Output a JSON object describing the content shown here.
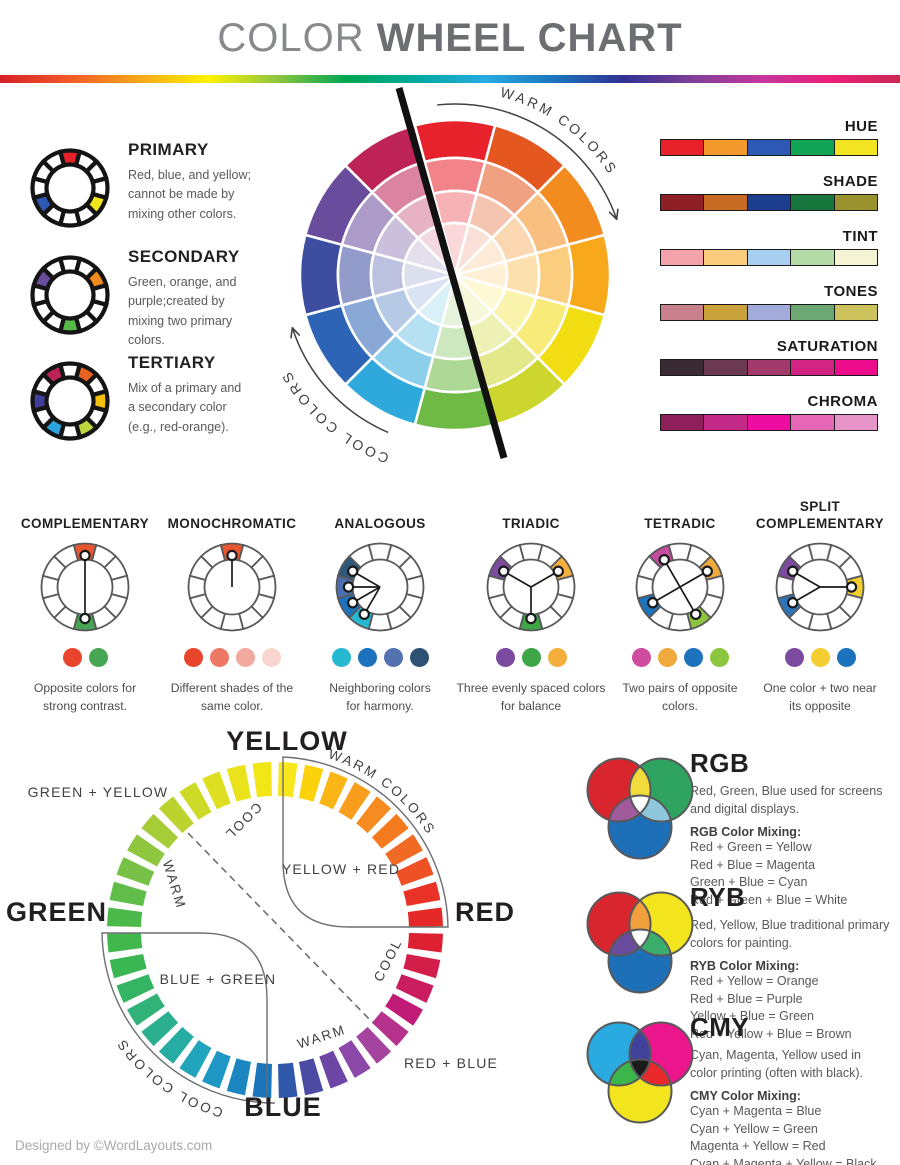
{
  "header": {
    "title_light": "COLOR",
    "title_bold": "WHEEL CHART",
    "rainbow_stops": [
      "#D62027",
      "#F05A28",
      "#F9A61A",
      "#FFF200",
      "#8DC63F",
      "#00A651",
      "#00A99D",
      "#29ABE2",
      "#1C75BC",
      "#2E3192",
      "#7F3F98",
      "#C4379E",
      "#EC1E79",
      "#C92A53"
    ]
  },
  "left_panel": {
    "items": [
      {
        "title": "PRIMARY",
        "description": "Red, blue, and yellow;\ncannot be made by\nmixing other colors.",
        "wheel_filled": {
          "0": "#E8212B",
          "4": "#F2E41D",
          "8": "#2D59B5"
        }
      },
      {
        "title": "SECONDARY",
        "description": "Green, orange, and\npurple;created by\nmixing two primary\ncolors.",
        "wheel_filled": {
          "2": "#F28A1F",
          "6": "#56B947",
          "10": "#6A4C9C"
        }
      },
      {
        "title": "TERTIARY",
        "description": "Mix of a primary and\na secondary color\n(e.g., red-orange).",
        "wheel_filled": {
          "1": "#E86322",
          "3": "#F2C20D",
          "5": "#BCD63B",
          "7": "#2BA4DD",
          "9": "#413E99",
          "11": "#BE2358"
        }
      }
    ]
  },
  "center_wheel": {
    "warm_label": "WARM COLORS",
    "cool_label": "COOL COLORS",
    "colors": [
      "#E8222B",
      "#E4581F",
      "#F28C1E",
      "#F7A81B",
      "#F2DC12",
      "#CDD62E",
      "#6FBA44",
      "#2FA9DC",
      "#2D64B5",
      "#3D4EA0",
      "#6A4C9C",
      "#BE2358"
    ],
    "tint_levels": [
      0,
      0.44,
      0.65,
      0.82
    ]
  },
  "strips": [
    {
      "label": "HUE",
      "colors": [
        "#E8212B",
        "#F49A2C",
        "#2D59B5",
        "#0FA456",
        "#F2E421"
      ]
    },
    {
      "label": "SHADE",
      "colors": [
        "#8E2025",
        "#C76A24",
        "#1D3D8F",
        "#17763B",
        "#99922F"
      ]
    },
    {
      "label": "TINT",
      "colors": [
        "#F4A2AC",
        "#FBCC7E",
        "#A9CFF0",
        "#B5DCA6",
        "#F4F3D3"
      ]
    },
    {
      "label": "TONES",
      "colors": [
        "#C9828D",
        "#C9A23B",
        "#A3ABDB",
        "#6CA873",
        "#CCC35C"
      ]
    },
    {
      "label": "SATURATION",
      "colors": [
        "#3A2B33",
        "#6B3A52",
        "#A23A6C",
        "#D32383",
        "#EC0C8C"
      ]
    },
    {
      "label": "CHROMA",
      "colors": [
        "#8E1F5B",
        "#C32A87",
        "#EE0DA1",
        "#E667B6",
        "#E795C9"
      ]
    }
  ],
  "harmonies": [
    {
      "title": "COMPLEMENTARY",
      "caption": "Opposite colors for\nstrong contrast.",
      "filled": {
        "0": "#E8552F",
        "6": "#46A653"
      },
      "markers": [
        0,
        6
      ],
      "pairs": [
        [
          0,
          6
        ]
      ],
      "dots": [
        "#E8452C",
        "#46A653"
      ]
    },
    {
      "title": "MONOCHROMATIC",
      "caption": "Different shades of the\nsame color.",
      "filled": {
        "0": "#E8552F"
      },
      "markers": [
        0
      ],
      "dots": [
        "#E8452C",
        "#ED7863",
        "#F2A99E",
        "#F8D5CF"
      ]
    },
    {
      "title": "ANALOGOUS",
      "caption": "Neighboring colors\nfor harmony.",
      "filled": {
        "7": "#26B8D1",
        "8": "#1D72BE",
        "9": "#4B6FAE",
        "10": "#2E5878"
      },
      "markers": [
        7,
        8,
        9,
        10
      ],
      "dots": [
        "#26B8D1",
        "#1D72BE",
        "#5472B0",
        "#2E5274"
      ]
    },
    {
      "title": "TRIADIC",
      "caption": "Three evenly spaced colors\nfor balance",
      "filled": {
        "2": "#F4AF3D",
        "6": "#3FA647",
        "10": "#7C4A9E"
      },
      "markers": [
        2,
        6,
        10
      ],
      "dots": [
        "#7C4A9E",
        "#3FA647",
        "#F4AF3D"
      ]
    },
    {
      "title": "TETRADIC",
      "caption": "Two pairs of opposite\ncolors.",
      "filled": {
        "11": "#C34C9E",
        "2": "#F0A93C",
        "5": "#8CC63E",
        "8": "#1D72BE"
      },
      "markers": [
        11,
        2,
        5,
        8
      ],
      "pairs": [
        [
          11,
          5
        ],
        [
          2,
          8
        ]
      ],
      "dots": [
        "#CE4D9F",
        "#F0A93C",
        "#1D72BE",
        "#8CC63E"
      ]
    },
    {
      "title": "SPLIT\nCOMPLEMENTARY",
      "caption": "One color + two near\nits opposite",
      "filled": {
        "3": "#F2CE2E",
        "8": "#2F74B9",
        "10": "#7C4A9E"
      },
      "markers": [
        3,
        8,
        10
      ],
      "dots": [
        "#7C4A9E",
        "#F4CD31",
        "#1D72BE"
      ]
    }
  ],
  "bottom_ring": {
    "labels": {
      "top": "YELLOW",
      "right": "RED",
      "bottom": "BLUE",
      "left": "GREEN"
    },
    "quadrant_labels": {
      "top_left": "GREEN + YELLOW",
      "top_right": "YELLOW + RED",
      "bottom_left": "BLUE + GREEN",
      "bottom_right": "RED + BLUE"
    },
    "arc_warm": "WARM COLORS",
    "arc_cool": "COOL COLORS",
    "temp_labels": [
      "COOL",
      "WARM",
      "COOL",
      "WARM"
    ],
    "colors": [
      "#F8E71C",
      "#FBD20B",
      "#FAB616",
      "#F99D1D",
      "#F68B21",
      "#F47A20",
      "#F16A24",
      "#EE5123",
      "#E93125",
      "#E52828",
      "#DE2033",
      "#D41E4A",
      "#C91D60",
      "#C01B76",
      "#B5338C",
      "#A4449F",
      "#8C48A9",
      "#6E46A6",
      "#4C4BA4",
      "#2F58AB",
      "#1B75BB",
      "#1B86C0",
      "#1E97C5",
      "#22A5BC",
      "#27ACA4",
      "#2BAF8E",
      "#30B279",
      "#35B464",
      "#3AB652",
      "#42B84C",
      "#4CBA4A",
      "#5FBD48",
      "#77C146",
      "#8FC640",
      "#A6CD38",
      "#BCD32F",
      "#CEDA28",
      "#DEDF20",
      "#EAE31B",
      "#F2E617"
    ]
  },
  "mixing": [
    {
      "title": "RGB",
      "description": "Red, Green, Blue used for screens\nand digital displays.",
      "mixing_title": "RGB Color Mixing:",
      "rules": "Red + Green = Yellow\nRed + Blue = Magenta\nGreen + Blue = Cyan\nRed + Green + Blue = White",
      "venn": {
        "a": "#D9252E",
        "b": "#2FA360",
        "c": "#1D6FB8",
        "ab": "#F2DC3B",
        "ac": "#A15A9B",
        "bc": "#8FC8DD",
        "abc": "#FFFFFF"
      }
    },
    {
      "title": "RYB",
      "description": "Red, Yellow, Blue traditional primary\ncolors for painting.",
      "mixing_title": "RYB Color Mixing:",
      "rules": "Red + Yellow = Orange\nRed + Blue = Purple\nYellow + Blue = Green\nRed + Yellow + Blue = Brown",
      "venn": {
        "a": "#D9252E",
        "b": "#F2E41D",
        "c": "#1D6FB8",
        "ab": "#F2A03D",
        "ac": "#6A4C9C",
        "bc": "#3BAE6E",
        "abc": "#FFFFFF"
      }
    },
    {
      "title": "CMY",
      "description": "Cyan, Magenta, Yellow used in\ncolor printing (often with black).",
      "mixing_title": "CMY Color Mixing:",
      "rules": "Cyan + Magenta = Blue\nCyan + Yellow = Green\nMagenta + Yellow = Red\nCyan + Magenta + Yellow = Black",
      "venn": {
        "a": "#29ABE2",
        "b": "#EC168C",
        "c": "#F2E41D",
        "ab": "#41429B",
        "ac": "#3CB54A",
        "bc": "#E8282B",
        "abc": "#1A1A1A"
      }
    }
  ],
  "footer": {
    "credit": "Designed by ©WordLayouts.com"
  }
}
